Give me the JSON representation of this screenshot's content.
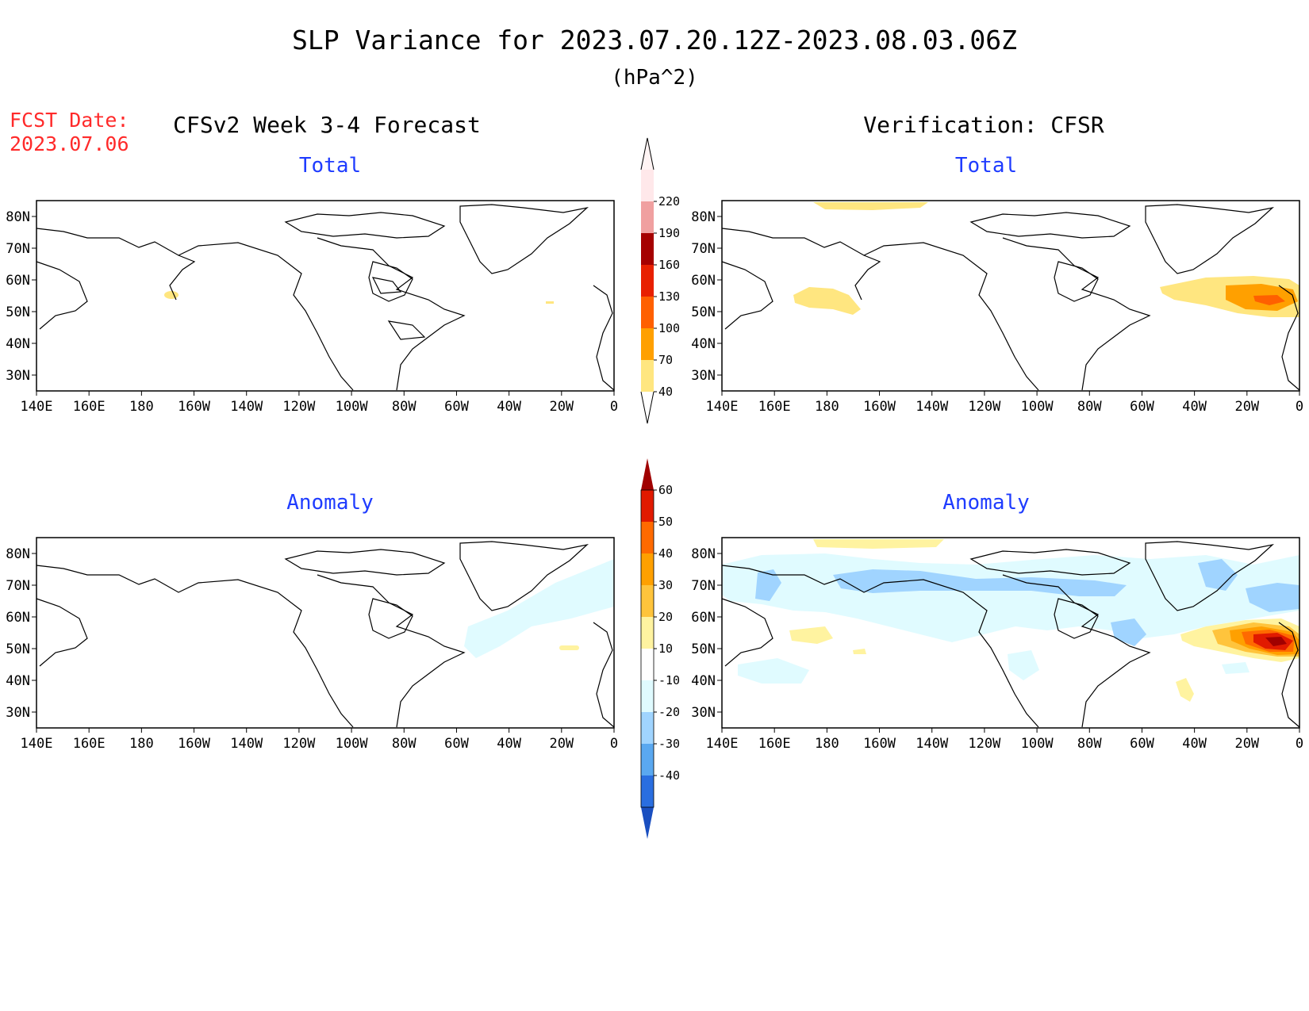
{
  "header": {
    "title": "SLP Variance for 2023.07.20.12Z-2023.08.03.06Z",
    "units": "(hPa^2)",
    "fcst_label": "FCST Date:",
    "fcst_date": "2023.07.06",
    "left_heading": "CFSv2 Week 3-4 Forecast",
    "right_heading": "Verification: CFSR"
  },
  "panels": [
    {
      "id": "fcst-total",
      "subtitle": "Total"
    },
    {
      "id": "verif-total",
      "subtitle": "Total"
    },
    {
      "id": "fcst-anomaly",
      "subtitle": "Anomaly"
    },
    {
      "id": "verif-anomaly",
      "subtitle": "Anomaly"
    }
  ],
  "axes": {
    "lon_labels": [
      "140E",
      "160E",
      "180",
      "160W",
      "140W",
      "120W",
      "100W",
      "80W",
      "60W",
      "40W",
      "20W",
      "0"
    ],
    "lat_labels": [
      "80N",
      "70N",
      "60N",
      "50N",
      "40N",
      "30N"
    ]
  },
  "colors": {
    "title": "#000000",
    "fcst_date": "#ff2a2a",
    "subtitle": "#1f3cff"
  },
  "colorbars": {
    "total": {
      "levels": [
        "40",
        "70",
        "100",
        "130",
        "160",
        "190",
        "220"
      ],
      "colors": [
        "#ffe680",
        "#ffa000",
        "#ff6000",
        "#e82000",
        "#a50000",
        "#f0a0a0",
        "#ffe8ea"
      ]
    },
    "anomaly": {
      "levels": [
        "60",
        "50",
        "40",
        "30",
        "20",
        "10",
        "-10",
        "-20",
        "-30",
        "-40"
      ],
      "colors_top_down": [
        "#a00000",
        "#e11a00",
        "#ff6a00",
        "#ffa000",
        "#ffc43c",
        "#fff3a0",
        "#ffffff",
        "#e0fbff",
        "#a0d4ff",
        "#5aa8f0",
        "#2a6ee0",
        "#1a4fc0"
      ]
    }
  }
}
